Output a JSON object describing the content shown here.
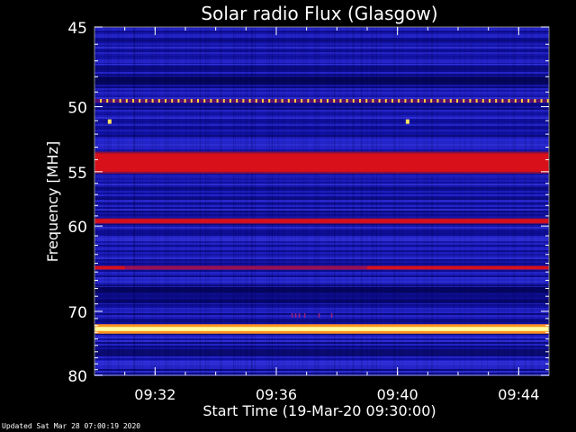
{
  "chart_data": {
    "type": "heatmap",
    "title": "Solar radio Flux (Glasgow)",
    "xlabel": "Start Time (19-Mar-20 09:30:00)",
    "ylabel": "Frequency [MHz]",
    "xlim": [
      "09:30:00",
      "09:45:00"
    ],
    "ylim": [
      80,
      45
    ],
    "y_scale": "reciprocal",
    "xticks": [
      "09:32",
      "09:36",
      "09:40",
      "09:44"
    ],
    "yticks": [
      45,
      50,
      55,
      60,
      70,
      80
    ],
    "background_level": "low (blue)",
    "features": [
      {
        "kind": "band",
        "freq_mhz": 49.6,
        "intensity": "dotted red/yellow pulses"
      },
      {
        "kind": "point",
        "time": "09:30:30",
        "freq_mhz": 51.1,
        "intensity": "yellow"
      },
      {
        "kind": "point",
        "time": "09:40:20",
        "freq_mhz": 51.1,
        "intensity": "yellow"
      },
      {
        "kind": "band",
        "freq_min_mhz": 53.5,
        "freq_max_mhz": 55.0,
        "intensity": "high (red)"
      },
      {
        "kind": "band",
        "freq_mhz": 59.5,
        "intensity": "high (red)"
      },
      {
        "kind": "band",
        "freq_mhz": 64.5,
        "intensity": "high (red), dimmer 09:31–09:39"
      },
      {
        "kind": "band",
        "freq_min_mhz": 72.2,
        "freq_max_mhz": 72.8,
        "intensity": "very high (white/yellow)"
      },
      {
        "kind": "burst",
        "time": "09:36:30",
        "freq_mhz": 70.5,
        "intensity": "faint red ticks"
      }
    ],
    "colors": {
      "background": "#000000",
      "low": "#1a1aa8",
      "mid": "#6a1a9a",
      "high": "#d8101a",
      "peak": "#ffffa0"
    }
  },
  "footer": {
    "updated": "Updated Sat Mar 28 07:00:19 2020"
  }
}
